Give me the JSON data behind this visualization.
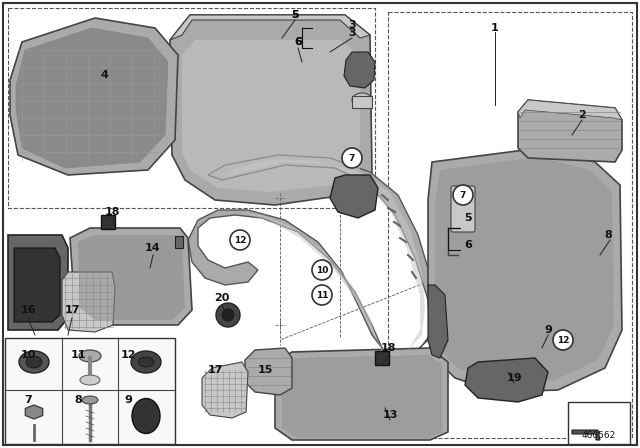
{
  "bg_color": "#ffffff",
  "diagram_id": "460562",
  "border_color": "#333333",
  "gray1": "#8a8a8a",
  "gray2": "#aaaaaa",
  "gray3": "#c8c8c8",
  "gray4": "#666666",
  "gray5": "#bbbbbb",
  "dark": "#444444",
  "darker": "#222222",
  "light_bg": "#f0f0f0",
  "label_fs": 8,
  "small_label_fs": 7,
  "line_color": "#111111",
  "dashed_color": "#666666",
  "labels_plain": [
    [
      "1",
      495,
      28
    ],
    [
      "2",
      582,
      115
    ],
    [
      "3",
      352,
      33
    ],
    [
      "4",
      104,
      75
    ],
    [
      "5",
      295,
      15
    ],
    [
      "6",
      298,
      42
    ],
    [
      "8",
      608,
      235
    ],
    [
      "9",
      548,
      330
    ],
    [
      "13",
      390,
      415
    ],
    [
      "14",
      153,
      248
    ],
    [
      "16",
      28,
      310
    ],
    [
      "17",
      72,
      310
    ],
    [
      "18",
      112,
      212
    ],
    [
      "18",
      388,
      348
    ],
    [
      "19",
      514,
      378
    ],
    [
      "20",
      222,
      298
    ]
  ],
  "labels_circled": [
    [
      "7",
      352,
      158
    ],
    [
      "7",
      463,
      195
    ],
    [
      "10",
      322,
      270
    ],
    [
      "11",
      322,
      295
    ],
    [
      "12",
      240,
      240
    ],
    [
      "12",
      563,
      340
    ]
  ],
  "labels_bottom_left": [
    [
      "10",
      28,
      355
    ],
    [
      "11",
      78,
      355
    ],
    [
      "12",
      128,
      355
    ],
    [
      "7",
      28,
      400
    ],
    [
      "8",
      78,
      400
    ],
    [
      "9",
      128,
      400
    ]
  ],
  "labels_bottom_center": [
    [
      "17",
      215,
      370
    ],
    [
      "15",
      265,
      370
    ]
  ],
  "leader_lines": [
    [
      495,
      32,
      495,
      105
    ],
    [
      582,
      120,
      572,
      135
    ],
    [
      352,
      38,
      330,
      52
    ],
    [
      295,
      20,
      282,
      38
    ],
    [
      298,
      48,
      302,
      62
    ],
    [
      610,
      240,
      600,
      255
    ],
    [
      548,
      335,
      542,
      348
    ],
    [
      390,
      420,
      385,
      408
    ],
    [
      153,
      255,
      150,
      268
    ],
    [
      112,
      218,
      115,
      228
    ],
    [
      388,
      355,
      382,
      365
    ],
    [
      514,
      383,
      508,
      372
    ],
    [
      222,
      305,
      228,
      318
    ],
    [
      28,
      318,
      35,
      335
    ],
    [
      72,
      318,
      68,
      335
    ]
  ]
}
